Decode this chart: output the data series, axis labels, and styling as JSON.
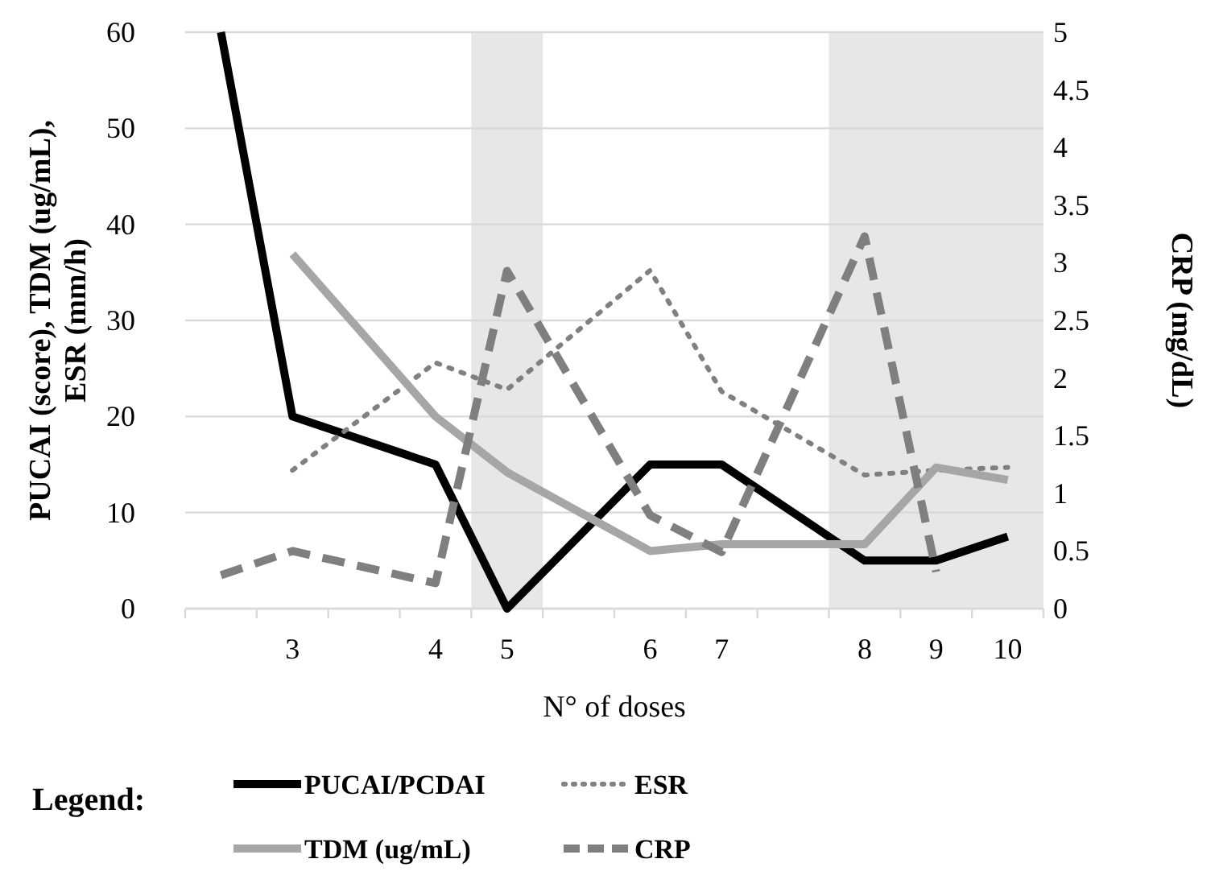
{
  "chart_data": {
    "type": "line",
    "xlabel": "N° of doses",
    "ylabel": "PUCAI (score), TDM (ug/mL), ESR (mm/h)",
    "y2label": "CRP (mg/dL)",
    "legend_title": "Legend:",
    "categories": [
      null,
      "3",
      null,
      "4",
      "5",
      null,
      "6",
      "7",
      null,
      "8",
      "9",
      "10"
    ],
    "ylim": [
      0,
      60
    ],
    "yticks": [
      0,
      10,
      20,
      30,
      40,
      50,
      60
    ],
    "y2lim": [
      0,
      5
    ],
    "y2ticks": [
      0,
      0.5,
      1,
      1.5,
      2,
      2.5,
      3,
      3.5,
      4,
      4.5,
      5
    ],
    "grid": "y",
    "legend": "bottom",
    "bands": [
      {
        "axis": "x",
        "from": "5",
        "to": "5",
        "color": "#e7e7e7"
      },
      {
        "axis": "x",
        "from": "8",
        "to": "10",
        "color": "#e7e7e7"
      }
    ],
    "series": [
      {
        "name": "PUCAI/PCDAI",
        "color": "#000000",
        "line_style": "solid",
        "values": [
          60,
          20,
          null,
          15,
          0,
          null,
          15,
          15,
          null,
          5,
          5,
          7.5
        ]
      },
      {
        "name": "ESR",
        "color": "#808080",
        "line_style": "dotted",
        "values": [
          null,
          14.4,
          null,
          25.6,
          22.8,
          null,
          35.2,
          22.6,
          null,
          13.9,
          14.4,
          14.7
        ]
      },
      {
        "name": "TDM (ug/mL)",
        "color": "#a6a6a6",
        "line_style": "solid",
        "values": [
          null,
          36.9,
          null,
          20,
          14.2,
          null,
          6,
          6.7,
          null,
          6.7,
          14.7,
          13.4
        ]
      },
      {
        "name": "CRP",
        "color": "#7f7f7f",
        "line_style": "dashed",
        "axis": "y2",
        "values": [
          0.29,
          0.5,
          null,
          0.22,
          2.93,
          null,
          0.81,
          0.49,
          null,
          3.23,
          0.32,
          null
        ]
      }
    ]
  }
}
